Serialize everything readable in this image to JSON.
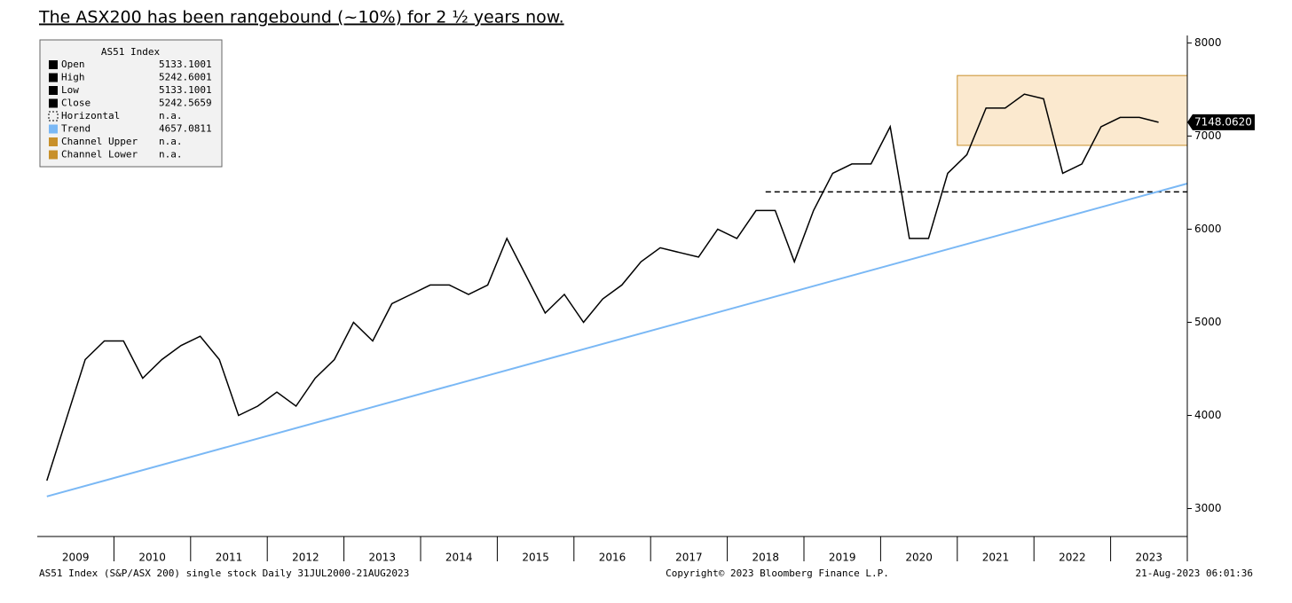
{
  "chart_data": {
    "type": "line",
    "title": "The ASX200 has been rangebound (~10%) for 2 ½ years now.",
    "categories": [
      "2009",
      null,
      null,
      null,
      "2010",
      null,
      null,
      null,
      "2011",
      null,
      null,
      null,
      "2012",
      null,
      null,
      null,
      "2013",
      null,
      null,
      null,
      "2014",
      null,
      null,
      null,
      "2015",
      null,
      null,
      null,
      "2016",
      null,
      null,
      null,
      "2017",
      null,
      null,
      null,
      "2018",
      null,
      null,
      null,
      "2019",
      null,
      null,
      null,
      "2020",
      null,
      null,
      null,
      "2021",
      null,
      null,
      null,
      "2022",
      null,
      null,
      null,
      "2023",
      null,
      null
    ],
    "series": [
      {
        "name": "Close",
        "color": "#000000",
        "values": [
          3300,
          3950,
          4600,
          4800,
          4800,
          4400,
          4600,
          4750,
          4850,
          4600,
          4000,
          4100,
          4250,
          4100,
          4400,
          4600,
          5000,
          4800,
          5200,
          5300,
          5400,
          5400,
          5300,
          5400,
          5900,
          5500,
          5100,
          5300,
          5000,
          5250,
          5400,
          5650,
          5800,
          5750,
          5700,
          6000,
          5900,
          6200,
          6200,
          5650,
          6200,
          6600,
          6700,
          6700,
          7100,
          5900,
          5900,
          6600,
          6800,
          7300,
          7300,
          7450,
          7400,
          6600,
          6700,
          7100,
          7200,
          7200,
          7148.062
        ]
      }
    ],
    "last_label": {
      "value": 7148.062,
      "label": "7148.0620"
    },
    "trend": {
      "name": "Trend",
      "color": "#7ab8f5",
      "from": 3130,
      "to": 6490
    },
    "horizontal": {
      "name": "Horizontal",
      "value": 6400
    },
    "channel": {
      "color": "#c8902a",
      "upper": 7650,
      "lower": 6900
    },
    "ylim": [
      2700,
      8080
    ],
    "yticks": [
      3000,
      4000,
      5000,
      6000,
      7000,
      8000
    ],
    "legend": {
      "title": "AS51 Index",
      "entries": [
        {
          "name": "Open",
          "value": 5133.1001
        },
        {
          "name": "High",
          "value": 5242.6001
        },
        {
          "name": "Low",
          "value": 5133.1001
        },
        {
          "name": "Close",
          "value": 5242.5659
        },
        {
          "name": "Horizontal",
          "value": "n.a."
        },
        {
          "name": "Trend",
          "value": 4657.0811
        },
        {
          "name": "Channel Upper",
          "value": "n.a."
        },
        {
          "name": "Channel Lower",
          "value": "n.a."
        }
      ]
    },
    "footer_left": "AS51 Index (S&P/ASX 200) single stock  Daily 31JUL2000-21AUG2023",
    "footer_center": "Copyright© 2023 Bloomberg Finance L.P.",
    "footer_right": "21-Aug-2023 06:01:36"
  }
}
